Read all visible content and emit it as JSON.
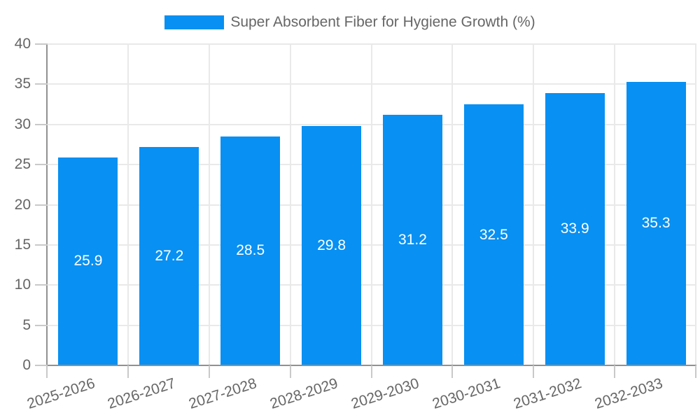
{
  "chart_data": {
    "type": "bar",
    "title": "Super Absorbent Fiber for Hygiene Growth (%)",
    "categories": [
      "2025-2026",
      "2026-2027",
      "2027-2028",
      "2028-2029",
      "2029-2030",
      "2030-2031",
      "2031-2032",
      "2032-2033"
    ],
    "values": [
      25.9,
      27.2,
      28.5,
      29.8,
      31.2,
      32.5,
      33.9,
      35.3
    ],
    "series_name": "Super Absorbent Fiber for Hygiene Growth (%)",
    "xlabel": "",
    "ylabel": "",
    "ylim": [
      0,
      40
    ],
    "yticks": [
      0,
      5,
      10,
      15,
      20,
      25,
      30,
      35,
      40
    ],
    "grid": true,
    "legend_position": "top-center",
    "value_labels": "inside-center",
    "value_decimals": 1
  },
  "colors": {
    "bar": "#0890F2",
    "text": "#666666",
    "grid": "#e9e9e9",
    "axis": "#919191",
    "tick": "#c9c9c9",
    "value_label": "#ffffff",
    "background": "#ffffff"
  }
}
